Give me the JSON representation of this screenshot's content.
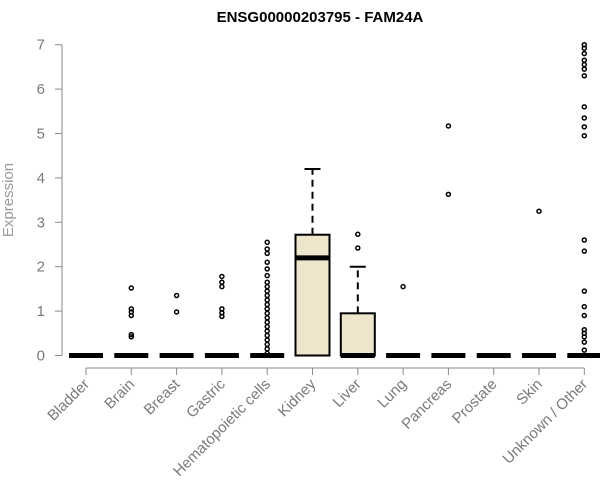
{
  "chart_data": {
    "type": "boxplot",
    "title": "ENSG00000203795 - FAM24A",
    "ylabel": "Expression",
    "xlabel": "",
    "ylim": [
      0,
      7
    ],
    "yticks": [
      0,
      1,
      2,
      3,
      4,
      5,
      6,
      7
    ],
    "box_fill": "#ede6cc",
    "categories": [
      "Bladder",
      "Brain",
      "Breast",
      "Gastric",
      "Hematopoietic cells",
      "Kidney",
      "Liver",
      "Lung",
      "Pancreas",
      "Prostate",
      "Skin",
      "Unknown / Other"
    ],
    "boxes": [
      {
        "category": "Bladder",
        "q1": 0,
        "median": 0,
        "q3": 0,
        "whisker_low": 0,
        "whisker_high": 0,
        "outliers": []
      },
      {
        "category": "Brain",
        "q1": 0,
        "median": 0,
        "q3": 0,
        "whisker_low": 0,
        "whisker_high": 0,
        "outliers": [
          0.42,
          0.47,
          0.9,
          0.98,
          1.05,
          1.52
        ]
      },
      {
        "category": "Breast",
        "q1": 0,
        "median": 0,
        "q3": 0,
        "whisker_low": 0,
        "whisker_high": 0,
        "outliers": [
          0.98,
          1.35
        ]
      },
      {
        "category": "Gastric",
        "q1": 0,
        "median": 0,
        "q3": 0,
        "whisker_low": 0,
        "whisker_high": 0,
        "outliers": [
          0.88,
          0.96,
          1.05,
          1.55,
          1.65,
          1.78
        ]
      },
      {
        "category": "Hematopoietic cells",
        "q1": 0,
        "median": 0,
        "q3": 0,
        "whisker_low": 0,
        "whisker_high": 0,
        "outliers": [
          0.05,
          0.15,
          0.25,
          0.35,
          0.45,
          0.55,
          0.65,
          0.75,
          0.85,
          0.95,
          1.05,
          1.15,
          1.25,
          1.35,
          1.45,
          1.55,
          1.65,
          1.8,
          1.95,
          2.1,
          2.3,
          2.4,
          2.55
        ]
      },
      {
        "category": "Kidney",
        "q1": 0,
        "median": 2.2,
        "q3": 2.72,
        "whisker_low": 0,
        "whisker_high": 4.2,
        "outliers": []
      },
      {
        "category": "Liver",
        "q1": 0,
        "median": 0,
        "q3": 0.95,
        "whisker_low": 0,
        "whisker_high": 2.0,
        "outliers": [
          2.42,
          2.73
        ]
      },
      {
        "category": "Lung",
        "q1": 0,
        "median": 0,
        "q3": 0,
        "whisker_low": 0,
        "whisker_high": 0,
        "outliers": [
          1.55
        ]
      },
      {
        "category": "Pancreas",
        "q1": 0,
        "median": 0,
        "q3": 0,
        "whisker_low": 0,
        "whisker_high": 0,
        "outliers": [
          3.63,
          5.17
        ]
      },
      {
        "category": "Prostate",
        "q1": 0,
        "median": 0,
        "q3": 0,
        "whisker_low": 0,
        "whisker_high": 0,
        "outliers": []
      },
      {
        "category": "Skin",
        "q1": 0,
        "median": 0,
        "q3": 0,
        "whisker_low": 0,
        "whisker_high": 0,
        "outliers": [
          3.25
        ]
      },
      {
        "category": "Unknown / Other",
        "q1": 0,
        "median": 0,
        "q3": 0,
        "whisker_low": 0,
        "whisker_high": 0,
        "outliers": [
          0.12,
          0.3,
          0.42,
          0.5,
          0.58,
          0.9,
          1.1,
          1.45,
          2.35,
          2.6,
          4.95,
          5.15,
          5.35,
          5.6,
          6.3,
          6.45,
          6.55,
          6.65,
          6.8,
          6.92,
          7.0
        ]
      }
    ]
  }
}
